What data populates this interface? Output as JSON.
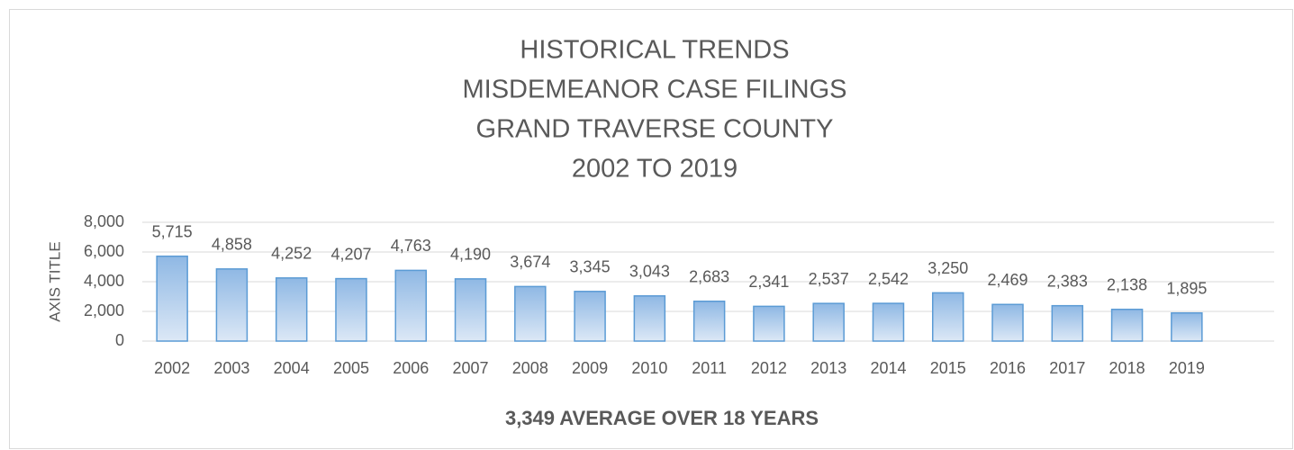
{
  "chart_data": {
    "type": "bar",
    "title": [
      "HISTORICAL TRENDS",
      "MISDEMEANOR CASE FILINGS",
      "GRAND TRAVERSE COUNTY",
      "2002 TO 2019"
    ],
    "y_axis_label": "AXIS TITLE",
    "x_axis_label": "3,349 AVERAGE OVER 18 YEARS",
    "categories": [
      "2002",
      "2003",
      "2004",
      "2005",
      "2006",
      "2007",
      "2008",
      "2009",
      "2010",
      "2011",
      "2012",
      "2013",
      "2014",
      "2015",
      "2016",
      "2017",
      "2018",
      "2019"
    ],
    "values": [
      5715,
      4858,
      4252,
      4207,
      4763,
      4190,
      3674,
      3345,
      3043,
      2683,
      2341,
      2537,
      2542,
      3250,
      2469,
      2383,
      2138,
      1895
    ],
    "value_labels": [
      "5,715",
      "4,858",
      "4,252",
      "4,207",
      "4,763",
      "4,190",
      "3,674",
      "3,345",
      "3,043",
      "2,683",
      "2,341",
      "2,537",
      "2,542",
      "3,250",
      "2,469",
      "2,383",
      "2,138",
      "1,895"
    ],
    "color": "#5b9bd5",
    "ylim": [
      0,
      8000
    ],
    "yticks": [
      0,
      {
        "value": 2000,
        "label": "2,000"
      },
      {
        "value": 4000,
        "label": "4,000"
      },
      {
        "value": 6000,
        "label": "6,000"
      },
      {
        "value": 8000,
        "label": "8,000"
      }
    ],
    "grid": true
  }
}
